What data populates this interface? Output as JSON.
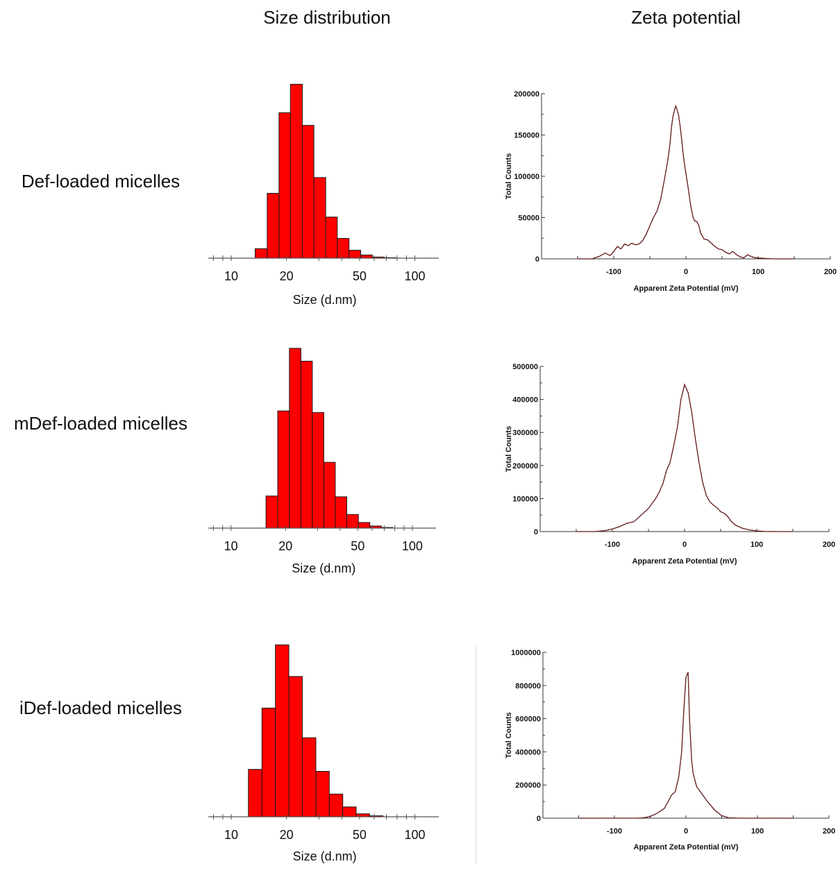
{
  "titles": {
    "size": "Size distribution",
    "zeta": "Zeta potential"
  },
  "rows": [
    {
      "label": "Def-loaded micelles"
    },
    {
      "label": "mDef-loaded micelles"
    },
    {
      "label": "iDef-loaded micelles"
    }
  ],
  "chart_data": [
    {
      "type": "bar",
      "title": "Size distribution",
      "row": "Def-loaded micelles",
      "xscale": "log",
      "xlabel": "Size (d.nm)",
      "xlim": [
        7.5,
        135
      ],
      "xticks": [
        10,
        20,
        50,
        100
      ],
      "bin_edges": [
        13.5,
        15.7,
        18.2,
        21.0,
        24.4,
        28.2,
        32.7,
        37.8,
        43.8,
        50.7,
        58.7,
        68.0,
        78.8
      ],
      "values": [
        6.0,
        41.0,
        92.0,
        110.0,
        84.0,
        51.0,
        26.0,
        12.5,
        5.0,
        2.0,
        0.7,
        0.3
      ],
      "ylim": [
        0,
        115
      ]
    },
    {
      "type": "bar",
      "title": "Size distribution",
      "row": "mDef-loaded micelles",
      "xscale": "log",
      "xlabel": "Size (d.nm)",
      "xlim": [
        7.5,
        135
      ],
      "xticks": [
        10,
        20,
        50,
        100
      ],
      "bin_edges": [
        15.6,
        18.1,
        21.0,
        24.3,
        28.1,
        32.5,
        37.6,
        43.5,
        50.4,
        58.3,
        67.5,
        78.1
      ],
      "values": [
        20.0,
        73.0,
        112.0,
        104.0,
        72.0,
        41.0,
        19.5,
        8.5,
        3.5,
        1.3,
        0.4
      ],
      "ylim": [
        0,
        115
      ]
    },
    {
      "type": "bar",
      "title": "Size distribution",
      "row": "iDef-loaded micelles",
      "xscale": "log",
      "xlabel": "Size (d.nm)",
      "xlim": [
        7.5,
        135
      ],
      "xticks": [
        10,
        20,
        50,
        100
      ],
      "bin_edges": [
        12.4,
        14.7,
        17.4,
        20.6,
        24.4,
        28.9,
        34.2,
        40.5,
        47.9,
        56.7,
        67.1
      ],
      "values": [
        24.0,
        55.0,
        87.0,
        71.0,
        40.0,
        23.0,
        11.5,
        5.0,
        1.5,
        0.5
      ],
      "ylim": [
        0,
        92
      ]
    },
    {
      "type": "line",
      "title": "Zeta potential",
      "row": "Def-loaded micelles",
      "xlabel": "Apparent Zeta Potential (mV)",
      "ylabel": "Total Counts",
      "xlim": [
        -200,
        200
      ],
      "ylim": [
        0,
        200000
      ],
      "xticks": [
        -100,
        0,
        100,
        200
      ],
      "yticks": [
        0,
        50000,
        100000,
        150000,
        200000
      ],
      "x": [
        -150,
        -130,
        -120,
        -112,
        -105,
        -100,
        -95,
        -90,
        -85,
        -80,
        -75,
        -70,
        -65,
        -60,
        -55,
        -50,
        -45,
        -40,
        -35,
        -30,
        -25,
        -22,
        -20,
        -18,
        -16,
        -14,
        -12,
        -10,
        -8,
        -6,
        -4,
        -2,
        0,
        2,
        4,
        6,
        8,
        10,
        12,
        15,
        18,
        20,
        25,
        30,
        35,
        40,
        45,
        50,
        55,
        60,
        65,
        70,
        75,
        80,
        85,
        90,
        95,
        100,
        110,
        120,
        130,
        150
      ],
      "y": [
        0,
        0,
        3000,
        7000,
        4000,
        9000,
        15000,
        12000,
        18000,
        16000,
        19000,
        17000,
        18000,
        22000,
        30000,
        40000,
        50000,
        58000,
        72000,
        95000,
        120000,
        140000,
        160000,
        172000,
        180000,
        185000,
        180000,
        173000,
        160000,
        145000,
        128000,
        115000,
        103000,
        92000,
        80000,
        68000,
        58000,
        50000,
        46000,
        45000,
        40000,
        32000,
        24000,
        23000,
        19000,
        15000,
        12000,
        11000,
        8000,
        6000,
        9000,
        5000,
        2500,
        1000,
        5000,
        3000,
        1500,
        1000,
        500,
        0,
        0,
        0
      ]
    },
    {
      "type": "line",
      "title": "Zeta potential",
      "row": "mDef-loaded micelles",
      "xlabel": "Apparent Zeta Potential (mV)",
      "ylabel": "Total Counts",
      "xlim": [
        -200,
        200
      ],
      "ylim": [
        0,
        500000
      ],
      "xticks": [
        -100,
        0,
        100,
        200
      ],
      "yticks": [
        0,
        100000,
        200000,
        300000,
        400000,
        500000
      ],
      "x": [
        -150,
        -125,
        -110,
        -100,
        -90,
        -80,
        -70,
        -60,
        -50,
        -45,
        -40,
        -35,
        -30,
        -25,
        -20,
        -15,
        -10,
        -5,
        0,
        5,
        10,
        15,
        20,
        25,
        30,
        35,
        40,
        45,
        50,
        55,
        60,
        65,
        70,
        80,
        90,
        100,
        110,
        130,
        150
      ],
      "y": [
        0,
        0,
        3000,
        8000,
        15000,
        25000,
        30000,
        50000,
        70000,
        85000,
        100000,
        120000,
        145000,
        185000,
        210000,
        260000,
        315000,
        400000,
        445000,
        420000,
        360000,
        280000,
        210000,
        150000,
        110000,
        90000,
        80000,
        72000,
        60000,
        55000,
        45000,
        30000,
        20000,
        10000,
        5000,
        2000,
        500,
        0,
        0
      ]
    },
    {
      "type": "line",
      "title": "Zeta potential",
      "row": "iDef-loaded micelles",
      "xlabel": "Apparent Zeta Potential (mV)",
      "ylabel": "Total Counts",
      "xlim": [
        -200,
        200
      ],
      "ylim": [
        0,
        1000000
      ],
      "xticks": [
        -100,
        0,
        100,
        200
      ],
      "yticks": [
        0,
        200000,
        400000,
        600000,
        800000,
        1000000
      ],
      "x": [
        -150,
        -100,
        -70,
        -60,
        -50,
        -40,
        -30,
        -25,
        -20,
        -15,
        -10,
        -6,
        -3,
        0,
        3,
        5,
        8,
        10,
        15,
        20,
        25,
        30,
        40,
        50,
        60,
        80,
        100,
        150
      ],
      "y": [
        0,
        0,
        0,
        2000,
        10000,
        30000,
        60000,
        100000,
        140000,
        160000,
        250000,
        400000,
        650000,
        850000,
        880000,
        600000,
        350000,
        270000,
        190000,
        160000,
        130000,
        100000,
        50000,
        15000,
        2000,
        0,
        0,
        0
      ]
    }
  ]
}
